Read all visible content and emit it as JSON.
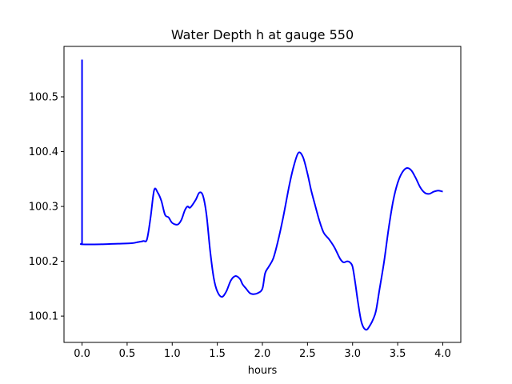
{
  "chart_data": {
    "type": "line",
    "title": "Water Depth h at gauge 550",
    "xlabel": "hours",
    "ylabel": "",
    "xlim": [
      -0.2,
      4.2
    ],
    "ylim": [
      100.052,
      100.592
    ],
    "xticks": [
      0.0,
      0.5,
      1.0,
      1.5,
      2.0,
      2.5,
      3.0,
      3.5,
      4.0
    ],
    "xtick_labels": [
      "0.0",
      "0.5",
      "1.0",
      "1.5",
      "2.0",
      "2.5",
      "3.0",
      "3.5",
      "4.0"
    ],
    "yticks": [
      100.1,
      100.2,
      100.3,
      100.4,
      100.5
    ],
    "ytick_labels": [
      "100.1",
      "100.2",
      "100.3",
      "100.4",
      "100.5"
    ],
    "grid": false,
    "series": [
      {
        "color": "#0000ff",
        "x": [
          0.0,
          0.0,
          0.0,
          0.2,
          0.4,
          0.55,
          0.62,
          0.68,
          0.72,
          0.76,
          0.8,
          0.84,
          0.88,
          0.92,
          0.96,
          1.0,
          1.06,
          1.1,
          1.14,
          1.17,
          1.2,
          1.26,
          1.3,
          1.34,
          1.38,
          1.42,
          1.46,
          1.5,
          1.55,
          1.6,
          1.65,
          1.7,
          1.75,
          1.78,
          1.82,
          1.86,
          1.9,
          1.95,
          2.0,
          2.03,
          2.07,
          2.12,
          2.17,
          2.23,
          2.3,
          2.35,
          2.4,
          2.45,
          2.5,
          2.54,
          2.58,
          2.63,
          2.68,
          2.74,
          2.8,
          2.86,
          2.9,
          2.94,
          2.97,
          3.0,
          3.03,
          3.06,
          3.1,
          3.15,
          3.2,
          3.23,
          3.26,
          3.3,
          3.35,
          3.4,
          3.45,
          3.5,
          3.55,
          3.6,
          3.65,
          3.7,
          3.75,
          3.8,
          3.85,
          3.9,
          3.95,
          4.0
        ],
        "y": [
          100.568,
          100.232,
          100.231,
          100.231,
          100.232,
          100.233,
          100.235,
          100.237,
          100.24,
          100.28,
          100.33,
          100.325,
          100.31,
          100.285,
          100.28,
          100.27,
          100.267,
          100.275,
          100.293,
          100.3,
          100.298,
          100.312,
          100.325,
          100.32,
          100.285,
          100.22,
          100.17,
          100.145,
          100.135,
          100.145,
          100.165,
          100.173,
          100.168,
          100.158,
          100.15,
          100.142,
          100.14,
          100.142,
          100.15,
          100.178,
          100.19,
          100.205,
          100.235,
          100.28,
          100.34,
          100.375,
          100.398,
          100.39,
          100.36,
          100.33,
          100.305,
          100.275,
          100.252,
          100.24,
          100.225,
          100.205,
          100.198,
          100.2,
          100.198,
          100.19,
          100.16,
          100.125,
          100.088,
          100.075,
          100.085,
          100.095,
          100.11,
          100.15,
          100.2,
          100.26,
          100.31,
          100.343,
          100.362,
          100.37,
          100.366,
          100.352,
          100.335,
          100.325,
          100.323,
          100.327,
          100.329,
          100.327
        ]
      }
    ]
  }
}
